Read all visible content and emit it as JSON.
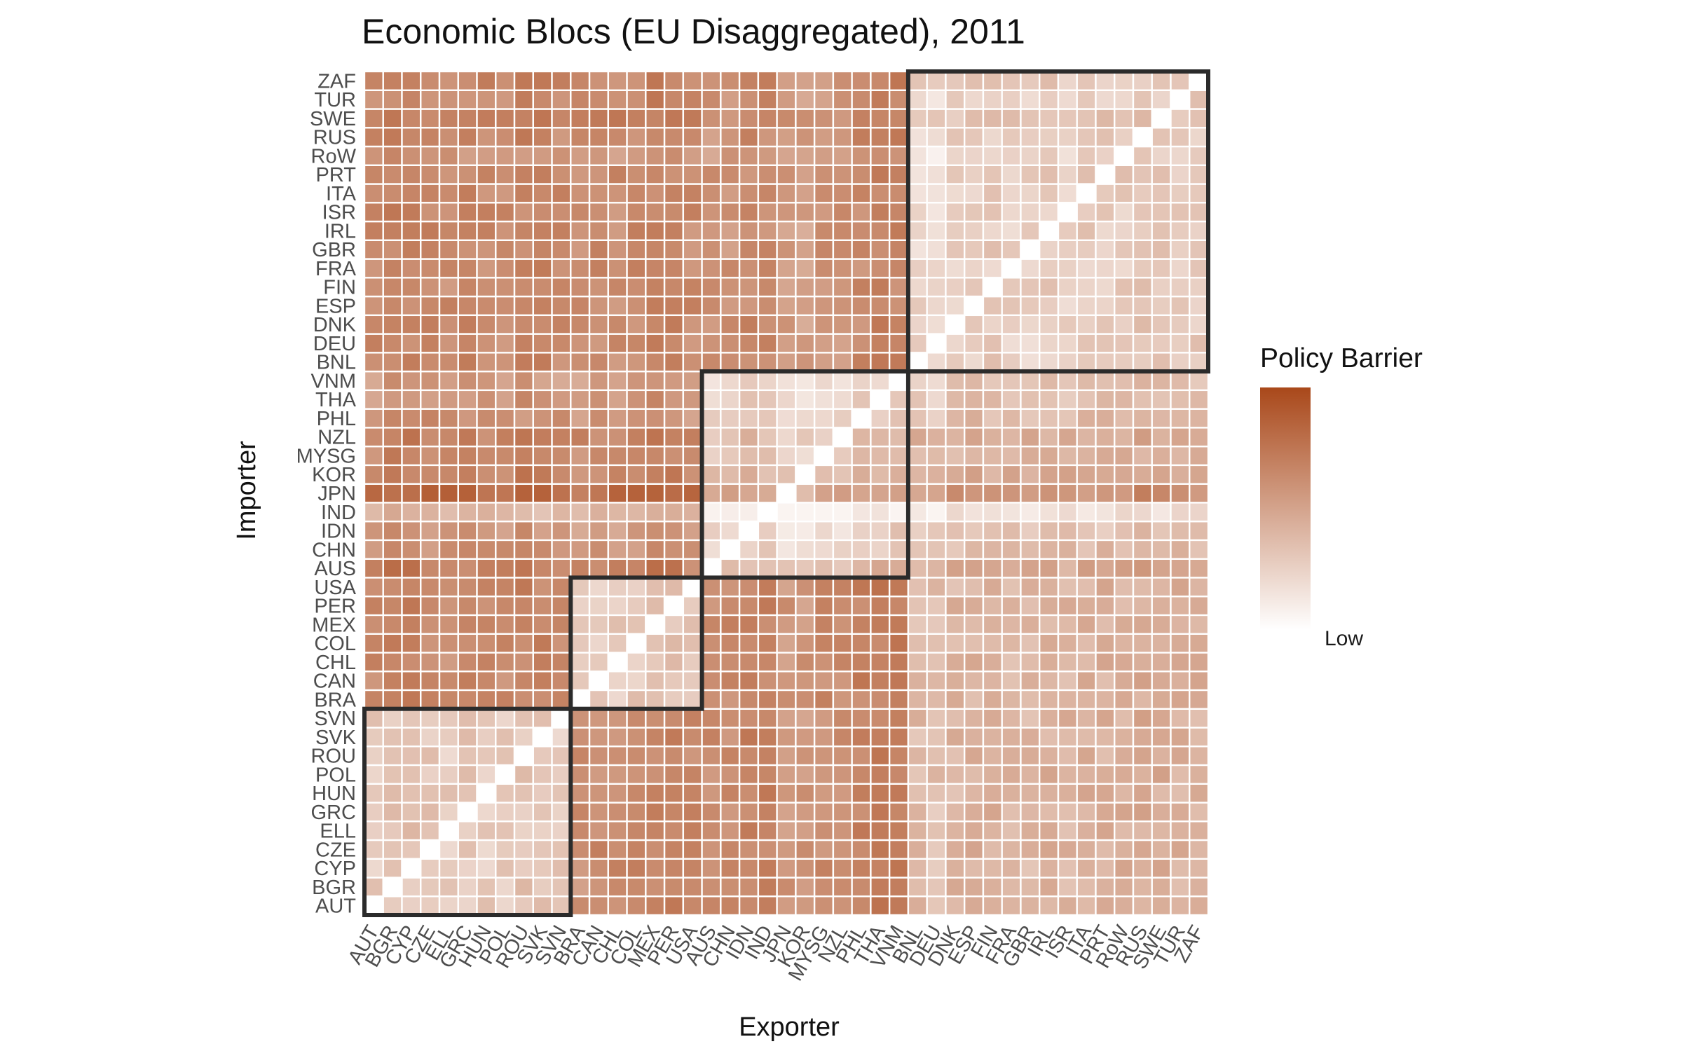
{
  "chart_data": {
    "type": "heatmap",
    "title": "Economic Blocs (EU Disaggregated), 2011",
    "xlabel": "Exporter",
    "ylabel": "Importer",
    "categories": [
      "AUT",
      "BGR",
      "CYP",
      "CZE",
      "ELL",
      "GRC",
      "HUN",
      "POL",
      "ROU",
      "SVK",
      "SVN",
      "BRA",
      "CAN",
      "CHL",
      "COL",
      "MEX",
      "PER",
      "USA",
      "AUS",
      "CHN",
      "IDN",
      "IND",
      "JPN",
      "KOR",
      "MYSG",
      "NZL",
      "PHL",
      "THA",
      "VNM",
      "BNL",
      "DEU",
      "DNK",
      "ESP",
      "FIN",
      "FRA",
      "GBR",
      "IRL",
      "ISR",
      "ITA",
      "PRT",
      "RoW",
      "RUS",
      "SWE",
      "TUR",
      "ZAF"
    ],
    "blocs": [
      {
        "from": "AUT",
        "to": "SVN"
      },
      {
        "from": "BRA",
        "to": "USA"
      },
      {
        "from": "AUS",
        "to": "VNM"
      },
      {
        "from": "BNL",
        "to": "ZAF"
      }
    ],
    "legend": {
      "title": "Policy Barrier",
      "low_label": "Low",
      "low_color": "#ffffff",
      "high_color": "#a9481a"
    },
    "diagonal": "white (self-trade)",
    "value_range": [
      0,
      1
    ],
    "note_values": "relative barrier intensity 0 (Low) – 1 (high); cell values estimated from color"
  }
}
